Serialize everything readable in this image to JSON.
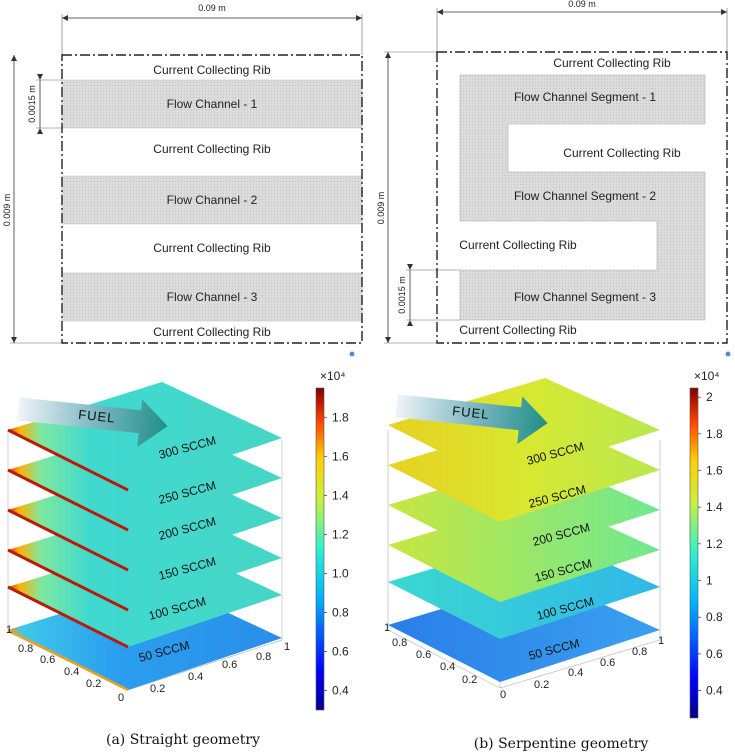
{
  "straight_schematic": {
    "width_label": "0.09 m",
    "height_label": "0.009 m",
    "channel_label": "0.0015 m",
    "bands": [
      {
        "label": "Current Collecting Rib",
        "type": "rib"
      },
      {
        "label": "Flow Channel - 1",
        "type": "channel"
      },
      {
        "label": "Current Collecting Rib",
        "type": "rib"
      },
      {
        "label": "Flow Channel - 2",
        "type": "channel"
      },
      {
        "label": "Current Collecting Rib",
        "type": "rib"
      },
      {
        "label": "Flow Channel - 3",
        "type": "channel"
      },
      {
        "label": "Current Collecting Rib",
        "type": "rib"
      }
    ]
  },
  "serpentine_schematic": {
    "width_label": "0.09 m",
    "height_label": "0.009 m",
    "channel_label": "0.0015 m",
    "labels": [
      "Current Collecting Rib",
      "Flow Channel Segment - 1",
      "Current Collecting Rib",
      "Flow Channel Segment - 2",
      "Current Collecting Rib",
      "Flow Channel Segment - 3",
      "Current Collecting Rib"
    ]
  },
  "plots": {
    "fuel_label": "FUEL",
    "flow_rates": [
      "300 SCCM",
      "250 SCCM",
      "200 SCCM",
      "150 SCCM",
      "100 SCCM",
      "50 SCCM"
    ],
    "axis_ticks_left": [
      "1",
      "0.8",
      "0.6",
      "0.4",
      "0.2",
      "0"
    ],
    "axis_ticks_right": [
      "0.2",
      "0.4",
      "0.6",
      "0.8",
      "1"
    ],
    "straight": {
      "caption": "(a) Straight geometry",
      "colorbar_exponent": "×10⁴",
      "colorbar_ticks": [
        "1.8",
        "1.6",
        "1.4",
        "1.2",
        "1.0",
        "0.8",
        "0.6",
        "0.4"
      ],
      "colorbar_range": [
        0.3,
        1.95
      ]
    },
    "serpentine": {
      "caption": "(b) Serpentine geometry",
      "colorbar_exponent": "×10⁴",
      "colorbar_ticks": [
        "2",
        "1.8",
        "1.6",
        "1.4",
        "1.2",
        "1",
        "0.8",
        "0.6",
        "0.4"
      ],
      "colorbar_range": [
        0.25,
        2.05
      ]
    }
  },
  "colors": {
    "channel_fill": "#d9d9d9",
    "arrow_start": "#e6eef3",
    "arrow_end": "#1f8f86"
  }
}
